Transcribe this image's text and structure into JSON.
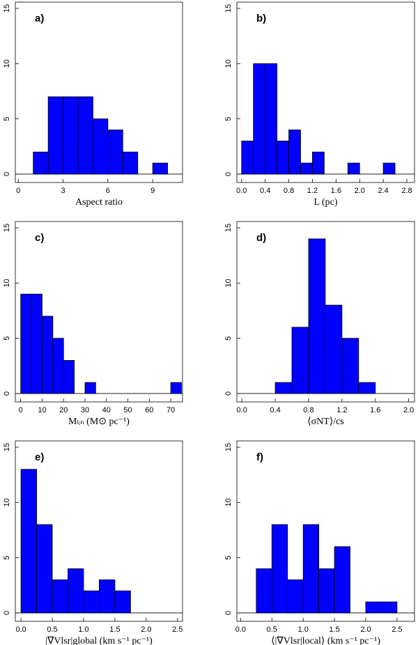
{
  "chart_data": [
    {
      "type": "histogram",
      "title": "a)",
      "xlabel": "Aspect ratio",
      "color": "#0000ff",
      "bins": [
        1,
        2,
        3,
        4,
        5,
        6,
        7,
        8,
        9,
        10
      ],
      "counts": [
        2,
        7,
        7,
        7,
        5,
        4,
        2,
        0,
        1
      ],
      "xlim": [
        -0.2,
        11.0
      ],
      "xticks": [
        0,
        3,
        6,
        9
      ],
      "ylim": [
        -0.76,
        15.57
      ],
      "yticks": [
        0,
        5,
        10,
        15
      ]
    },
    {
      "type": "histogram",
      "title": "b)",
      "xlabel": "L (pc)",
      "color": "#0000ff",
      "bins": [
        0,
        0.2,
        0.4,
        0.6,
        0.8,
        1.0,
        1.2,
        1.4,
        1.6,
        1.8,
        2.0,
        2.2,
        2.4,
        2.6
      ],
      "counts": [
        3,
        10,
        10,
        3,
        4,
        1,
        2,
        0,
        0,
        1,
        0,
        0,
        1
      ],
      "xlim": [
        -0.08,
        2.93
      ],
      "xticks": [
        {
          "value": 0,
          "label": "0.0"
        },
        0.4,
        0.8,
        1.2,
        1.6,
        {
          "value": 2,
          "label": "2.0"
        },
        2.4,
        2.8
      ],
      "ylim": [
        -0.76,
        15.57
      ],
      "yticks": [
        0,
        5,
        10,
        15
      ]
    },
    {
      "type": "histogram",
      "title": "c)",
      "xlabel": "Mₗᵢₙ (M⊙ pc⁻¹)",
      "color": "#0000ff",
      "bins": [
        0,
        5,
        10,
        15,
        20,
        25,
        30,
        35,
        40,
        45,
        50,
        55,
        60,
        65,
        70,
        75
      ],
      "counts": [
        9,
        9,
        7,
        5,
        3,
        0,
        1,
        0,
        0,
        0,
        0,
        0,
        0,
        0,
        1
      ],
      "xlim": [
        -2.5,
        75.5
      ],
      "xticks": [
        0,
        10,
        20,
        30,
        40,
        50,
        60,
        70
      ],
      "ylim": [
        -0.76,
        15.57
      ],
      "yticks": [
        0,
        5,
        10,
        15
      ]
    },
    {
      "type": "histogram",
      "title": "d)",
      "xlabel": "⟨σNT⟩/cs",
      "color": "#0000ff",
      "bins": [
        0.4,
        0.6,
        0.8,
        1.0,
        1.2,
        1.4,
        1.6
      ],
      "counts": [
        1,
        6,
        14,
        8,
        5,
        1
      ],
      "xlim": [
        -0.06,
        2.07
      ],
      "xticks": [
        {
          "value": 0,
          "label": "0.0"
        },
        0.4,
        0.8,
        1.2,
        1.6,
        {
          "value": 2,
          "label": "2.0"
        }
      ],
      "ylim": [
        -0.76,
        15.57
      ],
      "yticks": [
        0,
        5,
        10,
        15
      ]
    },
    {
      "type": "histogram",
      "title": "e)",
      "xlabel": "|∇Vlsr|global (km s⁻¹ pc⁻¹)",
      "color": "#0000ff",
      "bins": [
        0,
        0.25,
        0.5,
        0.75,
        1.0,
        1.25,
        1.5,
        1.75
      ],
      "counts": [
        13,
        8,
        3,
        4,
        2,
        3,
        2
      ],
      "xlim": [
        -0.09,
        2.58
      ],
      "xticks": [
        {
          "value": 0,
          "label": "0.0"
        },
        0.5,
        {
          "value": 1,
          "label": "1.0"
        },
        1.5,
        {
          "value": 2,
          "label": "2.0"
        },
        2.5
      ],
      "ylim": [
        -0.76,
        15.57
      ],
      "yticks": [
        0,
        5,
        10,
        15
      ]
    },
    {
      "type": "histogram",
      "title": "f)",
      "xlabel": "⟨|∇Vlsr|local⟩ (km s⁻¹ pc⁻¹)",
      "color": "#0000ff",
      "bins": [
        0.25,
        0.5,
        0.75,
        1.0,
        1.25,
        1.5,
        1.75,
        2.0,
        2.25,
        2.5
      ],
      "counts": [
        4,
        8,
        3,
        8,
        4,
        6,
        0,
        1,
        1
      ],
      "xlim": [
        -0.06,
        2.78
      ],
      "xticks": [
        {
          "value": 0,
          "label": "0.0"
        },
        0.5,
        {
          "value": 1,
          "label": "1.0"
        },
        1.5,
        {
          "value": 2,
          "label": "2.0"
        },
        2.5
      ],
      "ylim": [
        -0.76,
        15.57
      ],
      "yticks": [
        0,
        5,
        10,
        15
      ]
    }
  ]
}
